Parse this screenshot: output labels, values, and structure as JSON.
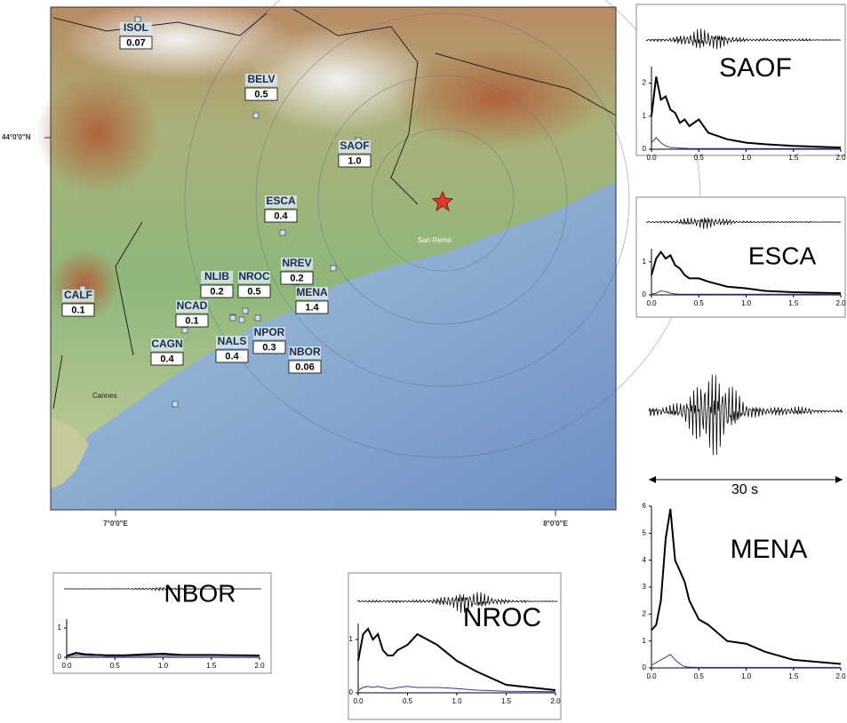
{
  "map": {
    "lat_label": "44°0'0\"N",
    "lon_labels": [
      "7°0'0\"E",
      "8°0'0\"E"
    ],
    "places": [
      "San Remo",
      "Cannes"
    ],
    "stations": [
      {
        "name": "ISOL",
        "value": "0.07"
      },
      {
        "name": "BELV",
        "value": "0.5"
      },
      {
        "name": "SAOF",
        "value": "1.0"
      },
      {
        "name": "ESCA",
        "value": "0.4"
      },
      {
        "name": "NLIB",
        "value": "0.2"
      },
      {
        "name": "NROC",
        "value": "0.5"
      },
      {
        "name": "NREV",
        "value": "0.2"
      },
      {
        "name": "MENA",
        "value": "1.4"
      },
      {
        "name": "CALF",
        "value": "0.1"
      },
      {
        "name": "NCAD",
        "value": "0.1"
      },
      {
        "name": "CAGN",
        "value": "0.4"
      },
      {
        "name": "NALS",
        "value": "0.4"
      },
      {
        "name": "NPOR",
        "value": "0.3"
      },
      {
        "name": "NBOR",
        "value": "0.06"
      }
    ]
  },
  "scale_label": "30 s",
  "chart_data": [
    {
      "type": "line",
      "title": "SAOF",
      "x": [
        0,
        0.05,
        0.1,
        0.15,
        0.2,
        0.25,
        0.3,
        0.35,
        0.4,
        0.5,
        0.6,
        0.8,
        1.0,
        1.2,
        1.5,
        2.0
      ],
      "xlim": [
        0,
        2
      ],
      "xticks": [
        {
          "value": 0,
          "label": "0.0"
        },
        0.5,
        {
          "value": 1,
          "label": "1.0"
        },
        1.5,
        {
          "value": 2,
          "label": "2.0"
        }
      ],
      "ylim": [
        0,
        2.5
      ],
      "yticks": [
        0,
        1,
        2
      ],
      "series": [
        {
          "color": "#000000",
          "values": [
            1.0,
            2.2,
            1.5,
            1.6,
            1.2,
            1.1,
            0.8,
            0.9,
            0.7,
            0.9,
            0.5,
            0.3,
            0.2,
            0.15,
            0.1,
            0.05
          ]
        },
        {
          "color": "#2b3f9e",
          "values": [
            0.2,
            0.35,
            0.2,
            0.1,
            0.05,
            0.05,
            0.03,
            0.03,
            0.02,
            0.02,
            0.02,
            0.02,
            0.02,
            0.02,
            0.02,
            0.02
          ]
        }
      ]
    },
    {
      "type": "line",
      "title": "ESCA",
      "x": [
        0,
        0.05,
        0.1,
        0.15,
        0.2,
        0.25,
        0.3,
        0.35,
        0.4,
        0.5,
        0.6,
        0.8,
        1.0,
        1.2,
        1.5,
        2.0
      ],
      "xlim": [
        0,
        2
      ],
      "xticks": [
        {
          "value": 0,
          "label": "0.0"
        },
        0.5,
        {
          "value": 1,
          "label": "1.0"
        },
        1.5,
        {
          "value": 2,
          "label": "2.0"
        }
      ],
      "ylim": [
        0,
        1.4
      ],
      "yticks": [
        0,
        1
      ],
      "series": [
        {
          "color": "#000000",
          "values": [
            0.6,
            1.1,
            1.3,
            1.1,
            1.2,
            0.9,
            0.8,
            0.6,
            0.5,
            0.5,
            0.4,
            0.25,
            0.2,
            0.12,
            0.08,
            0.05
          ]
        },
        {
          "color": "#2b3f9e",
          "values": [
            0.02,
            0.05,
            0.12,
            0.1,
            0.05,
            0.03,
            0.02,
            0.02,
            0.02,
            0.02,
            0.02,
            0.02,
            0.02,
            0.02,
            0.02,
            0.02
          ]
        }
      ]
    },
    {
      "type": "line",
      "title": "MENA",
      "x": [
        0,
        0.05,
        0.1,
        0.15,
        0.2,
        0.25,
        0.3,
        0.35,
        0.4,
        0.5,
        0.6,
        0.8,
        1.0,
        1.2,
        1.5,
        2.0
      ],
      "xlim": [
        0,
        2
      ],
      "xticks": [
        {
          "value": 0,
          "label": "0.0"
        },
        0.5,
        {
          "value": 1,
          "label": "1.0"
        },
        1.5,
        {
          "value": 2,
          "label": "2.0"
        }
      ],
      "ylim": [
        0,
        6
      ],
      "yticks": [
        0,
        1,
        2,
        3,
        4,
        5,
        6
      ],
      "series": [
        {
          "color": "#000000",
          "values": [
            1.4,
            1.6,
            2.5,
            4.8,
            5.9,
            4.0,
            3.6,
            3.2,
            2.5,
            1.8,
            1.6,
            1.0,
            0.9,
            0.6,
            0.3,
            0.15
          ]
        },
        {
          "color": "#2b3f9e",
          "values": [
            0.1,
            0.2,
            0.3,
            0.4,
            0.5,
            0.3,
            0.15,
            0.05,
            0.03,
            0.02,
            0.02,
            0.02,
            0.02,
            0.02,
            0.02,
            0.02
          ]
        }
      ]
    },
    {
      "type": "line",
      "title": "NBOR",
      "x": [
        0,
        0.05,
        0.1,
        0.15,
        0.2,
        0.25,
        0.3,
        0.35,
        0.4,
        0.5,
        0.6,
        0.8,
        1.0,
        1.2,
        1.5,
        2.0
      ],
      "xlim": [
        0,
        2
      ],
      "xticks": [
        {
          "value": 0,
          "label": "0.0"
        },
        0.5,
        {
          "value": 1,
          "label": "1.0"
        },
        1.5,
        {
          "value": 2,
          "label": "2.0"
        }
      ],
      "ylim": [
        0,
        1.3
      ],
      "yticks": [
        0,
        1
      ],
      "series": [
        {
          "color": "#000000",
          "values": [
            0.05,
            0.1,
            0.15,
            0.12,
            0.1,
            0.1,
            0.08,
            0.08,
            0.07,
            0.07,
            0.07,
            0.1,
            0.12,
            0.08,
            0.08,
            0.06
          ]
        },
        {
          "color": "#2b3f9e",
          "values": [
            0.03,
            0.06,
            0.08,
            0.07,
            0.06,
            0.05,
            0.05,
            0.05,
            0.04,
            0.04,
            0.04,
            0.05,
            0.06,
            0.05,
            0.05,
            0.04
          ]
        }
      ]
    },
    {
      "type": "line",
      "title": "NROC",
      "x": [
        0,
        0.05,
        0.1,
        0.15,
        0.2,
        0.25,
        0.3,
        0.35,
        0.4,
        0.5,
        0.6,
        0.8,
        1.0,
        1.2,
        1.5,
        2.0
      ],
      "xlim": [
        0,
        2
      ],
      "xticks": [
        {
          "value": 0,
          "label": "0.0"
        },
        0.5,
        {
          "value": 1,
          "label": "1.0"
        },
        1.5,
        {
          "value": 2,
          "label": "2.0"
        }
      ],
      "ylim": [
        0,
        1.3
      ],
      "yticks": [
        0,
        1
      ],
      "series": [
        {
          "color": "#000000",
          "values": [
            0.6,
            1.1,
            1.2,
            1.0,
            1.1,
            0.8,
            0.7,
            0.7,
            0.8,
            0.9,
            1.1,
            0.9,
            0.6,
            0.4,
            0.15,
            0.05
          ]
        },
        {
          "color": "#2b3f9e",
          "values": [
            0.05,
            0.1,
            0.12,
            0.1,
            0.12,
            0.1,
            0.08,
            0.08,
            0.1,
            0.12,
            0.1,
            0.1,
            0.08,
            0.05,
            0.03,
            0.02
          ]
        }
      ]
    }
  ]
}
